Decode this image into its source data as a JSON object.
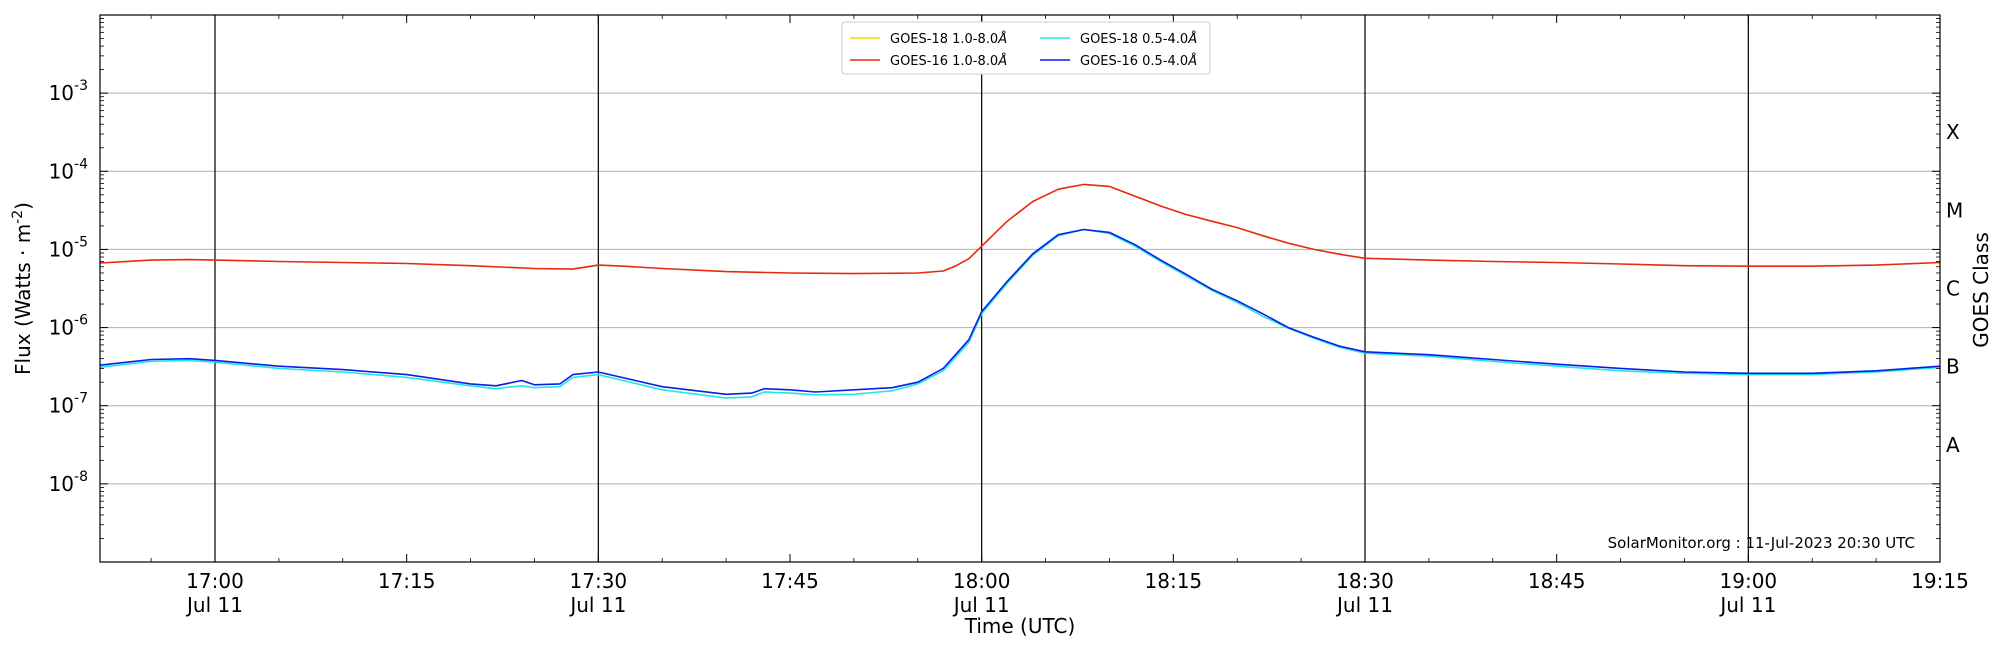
{
  "chart_data": {
    "type": "line",
    "title": "",
    "xlabel": "Time (UTC)",
    "ylabel": "Flux (Watts · m",
    "ylabel_sup": "-2",
    "ylabel_close": ")",
    "right_label": "GOES Class",
    "ylim": [
      1e-09,
      0.01
    ],
    "yscale": "log",
    "xlim_minutes_of_day": [
      1011,
      1155
    ],
    "y_ticks": [
      {
        "value": 1e-08,
        "base": "10",
        "exp": "-8"
      },
      {
        "value": 1e-07,
        "base": "10",
        "exp": "-7"
      },
      {
        "value": 1e-06,
        "base": "10",
        "exp": "-6"
      },
      {
        "value": 1e-05,
        "base": "10",
        "exp": "-5"
      },
      {
        "value": 0.0001,
        "base": "10",
        "exp": "-4"
      },
      {
        "value": 0.001,
        "base": "10",
        "exp": "-3"
      }
    ],
    "x_ticks": [
      {
        "t": 1020,
        "time": "17:00",
        "date": "Jul 11"
      },
      {
        "t": 1035,
        "time": "17:15",
        "date": ""
      },
      {
        "t": 1050,
        "time": "17:30",
        "date": "Jul 11"
      },
      {
        "t": 1065,
        "time": "17:45",
        "date": ""
      },
      {
        "t": 1080,
        "time": "18:00",
        "date": "Jul 11"
      },
      {
        "t": 1095,
        "time": "18:15",
        "date": ""
      },
      {
        "t": 1110,
        "time": "18:30",
        "date": "Jul 11"
      },
      {
        "t": 1125,
        "time": "18:45",
        "date": ""
      },
      {
        "t": 1140,
        "time": "19:00",
        "date": "Jul 11"
      },
      {
        "t": 1155,
        "time": "19:15",
        "date": ""
      }
    ],
    "vertical_lines": [
      1020,
      1050,
      1080,
      1110,
      1140
    ],
    "grid": "horizontal",
    "legend_position": "top-center",
    "goes_classes": [
      {
        "label": "A",
        "low": 1e-08,
        "high": 1e-07
      },
      {
        "label": "B",
        "low": 1e-07,
        "high": 1e-06
      },
      {
        "label": "C",
        "low": 1e-06,
        "high": 1e-05
      },
      {
        "label": "M",
        "low": 1e-05,
        "high": 0.0001
      },
      {
        "label": "X",
        "low": 0.0001,
        "high": 0.001
      }
    ],
    "series": [
      {
        "name": "GOES-18 1.0-8.0",
        "name_suffix": "Å",
        "color": "#ffd700",
        "x": [],
        "y": []
      },
      {
        "name": "GOES-16 1.0-8.0",
        "name_suffix": "Å",
        "color": "#e8290b",
        "x": [
          1011,
          1015,
          1018,
          1020,
          1025,
          1030,
          1035,
          1040,
          1045,
          1048,
          1050,
          1052,
          1055,
          1060,
          1065,
          1070,
          1075,
          1077,
          1078,
          1079,
          1080,
          1082,
          1084,
          1086,
          1088,
          1090,
          1092,
          1094,
          1096,
          1098,
          1100,
          1102,
          1104,
          1106,
          1108,
          1110,
          1115,
          1120,
          1125,
          1130,
          1135,
          1140,
          1145,
          1150,
          1155
        ],
        "y": [
          6.7e-06,
          7.3e-06,
          7.4e-06,
          7.3e-06,
          7e-06,
          6.8e-06,
          6.6e-06,
          6.2e-06,
          5.7e-06,
          5.6e-06,
          6.3e-06,
          6.1e-06,
          5.7e-06,
          5.2e-06,
          5e-06,
          4.9e-06,
          5e-06,
          5.3e-06,
          6.2e-06,
          7.6e-06,
          1.1e-05,
          2.3e-05,
          4.1e-05,
          5.9e-05,
          6.8e-05,
          6.4e-05,
          4.8e-05,
          3.6e-05,
          2.8e-05,
          2.3e-05,
          1.9e-05,
          1.5e-05,
          1.2e-05,
          1e-05,
          8.7e-06,
          7.7e-06,
          7.3e-06,
          7e-06,
          6.8e-06,
          6.5e-06,
          6.2e-06,
          6.1e-06,
          6.1e-06,
          6.3e-06,
          6.8e-06
        ]
      },
      {
        "name": "GOES-18 0.5-4.0",
        "name_suffix": "Å",
        "color": "#22e6e6",
        "x": [
          1011,
          1015,
          1018,
          1020,
          1025,
          1030,
          1035,
          1040,
          1042,
          1044,
          1045,
          1047,
          1048,
          1050,
          1055,
          1060,
          1062,
          1063,
          1065,
          1067,
          1070,
          1073,
          1075,
          1077,
          1079,
          1080,
          1082,
          1084,
          1086,
          1088,
          1090,
          1092,
          1094,
          1096,
          1098,
          1100,
          1102,
          1104,
          1106,
          1108,
          1110,
          1115,
          1120,
          1125,
          1130,
          1135,
          1140,
          1145,
          1150,
          1155
        ],
        "y": [
          3.1e-07,
          3.7e-07,
          3.8e-07,
          3.6e-07,
          3e-07,
          2.7e-07,
          2.3e-07,
          1.8e-07,
          1.65e-07,
          1.8e-07,
          1.7e-07,
          1.75e-07,
          2.3e-07,
          2.5e-07,
          1.6e-07,
          1.25e-07,
          1.3e-07,
          1.5e-07,
          1.45e-07,
          1.38e-07,
          1.4e-07,
          1.55e-07,
          1.9e-07,
          2.8e-07,
          6.5e-07,
          1.5e-06,
          3.7e-06,
          8.4e-06,
          1.5e-05,
          1.8e-05,
          1.6e-05,
          1.1e-05,
          7e-06,
          4.6e-06,
          3e-06,
          2.1e-06,
          1.4e-06,
          9.8e-07,
          7.3e-07,
          5.6e-07,
          4.7e-07,
          4.3e-07,
          3.7e-07,
          3.2e-07,
          2.8e-07,
          2.6e-07,
          2.5e-07,
          2.5e-07,
          2.7e-07,
          3.1e-07
        ]
      },
      {
        "name": "GOES-16 0.5-4.0",
        "name_suffix": "Å",
        "color": "#0a1ee6",
        "x": [
          1011,
          1015,
          1018,
          1020,
          1025,
          1030,
          1035,
          1040,
          1042,
          1044,
          1045,
          1047,
          1048,
          1050,
          1055,
          1060,
          1062,
          1063,
          1065,
          1067,
          1070,
          1073,
          1075,
          1077,
          1079,
          1080,
          1082,
          1084,
          1086,
          1088,
          1090,
          1092,
          1094,
          1096,
          1098,
          1100,
          1102,
          1104,
          1106,
          1108,
          1110,
          1115,
          1120,
          1125,
          1130,
          1135,
          1140,
          1145,
          1150,
          1155
        ],
        "y": [
          3.3e-07,
          3.9e-07,
          4e-07,
          3.8e-07,
          3.2e-07,
          2.9e-07,
          2.5e-07,
          1.9e-07,
          1.8e-07,
          2.1e-07,
          1.85e-07,
          1.9e-07,
          2.5e-07,
          2.7e-07,
          1.75e-07,
          1.4e-07,
          1.45e-07,
          1.65e-07,
          1.6e-07,
          1.5e-07,
          1.6e-07,
          1.7e-07,
          2e-07,
          3e-07,
          7e-07,
          1.6e-06,
          3.9e-06,
          8.8e-06,
          1.55e-05,
          1.8e-05,
          1.65e-05,
          1.15e-05,
          7.3e-06,
          4.8e-06,
          3.1e-06,
          2.2e-06,
          1.5e-06,
          1e-06,
          7.5e-07,
          5.8e-07,
          4.9e-07,
          4.5e-07,
          3.9e-07,
          3.4e-07,
          3e-07,
          2.7e-07,
          2.6e-07,
          2.6e-07,
          2.8e-07,
          3.2e-07
        ]
      }
    ],
    "credit": "SolarMonitor.org : 11-Jul-2023 20:30 UTC"
  }
}
